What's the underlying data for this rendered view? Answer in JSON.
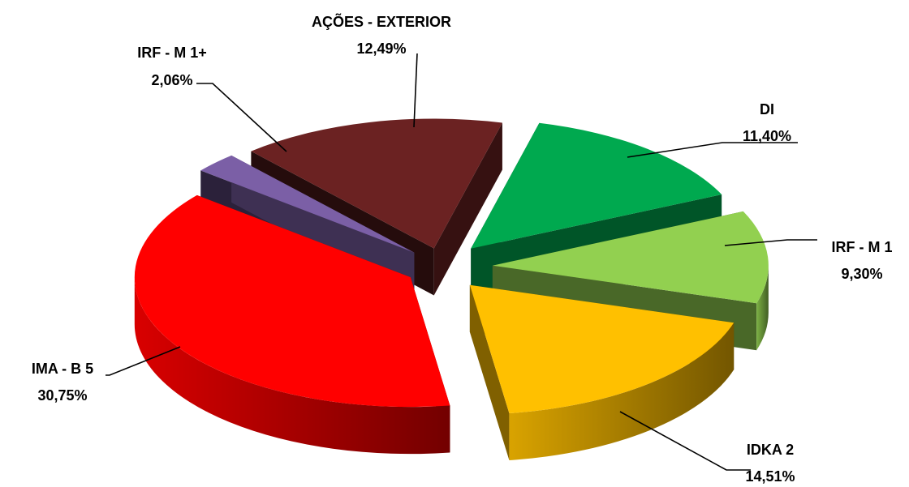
{
  "chart_data": {
    "type": "pie",
    "style": "3d exploded",
    "slices": [
      {
        "label": "AÇÕES - EXTERIOR",
        "value": 12.49,
        "value_label": "12,49%",
        "color": "#6B2222"
      },
      {
        "label": "DI",
        "value": 11.4,
        "value_label": "11,40%",
        "color": "#00A94F"
      },
      {
        "label": "IRF - M 1",
        "value": 9.3,
        "value_label": "9,30%",
        "color": "#92D050"
      },
      {
        "label": "IDKA 2",
        "value": 14.51,
        "value_label": "14,51%",
        "color": "#FFC000"
      },
      {
        "label": "IMA - B 5",
        "value": 30.75,
        "value_label": "30,75%",
        "color": "#FF0000"
      },
      {
        "label": "IRF - M 1+",
        "value": 2.06,
        "value_label": "2,06%",
        "color": "#7B5FA6"
      }
    ]
  }
}
